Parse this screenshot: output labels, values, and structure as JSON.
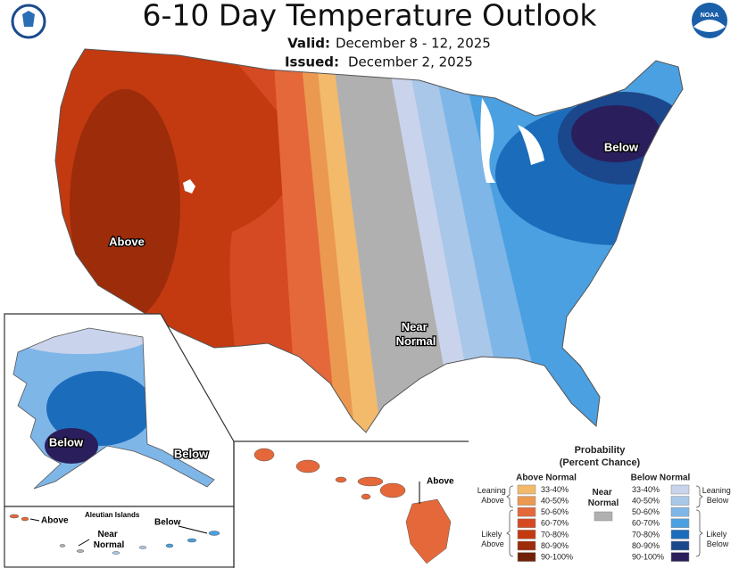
{
  "header": {
    "title": "6-10 Day Temperature Outlook",
    "valid_label": "Valid:",
    "valid_dates": "December 8 - 12, 2025",
    "issued_label": "Issued:",
    "issued_date": "December 2, 2025",
    "noaa_logo_text": "NOAA"
  },
  "map_labels": {
    "conus_above": "Above",
    "conus_near": [
      "Near",
      "Normal"
    ],
    "conus_below": "Below",
    "alaska_below": "Below",
    "panhandle_below": "Below",
    "hawaii_above": "Above",
    "aleutian_title": "Aleutian Islands",
    "aleutian_above": "Above",
    "aleutian_below": "Below",
    "aleutian_near": [
      "Near",
      "Normal"
    ]
  },
  "legend": {
    "title": "Probability",
    "subtitle": "(Percent Chance)",
    "above_header": "Above Normal",
    "below_header": "Below Normal",
    "near_header": [
      "Near",
      "Normal"
    ],
    "near_color": "#b0b0b0",
    "leaning_above": [
      "Leaning",
      "Above"
    ],
    "likely_above": [
      "Likely",
      "Above"
    ],
    "leaning_below": [
      "Leaning",
      "Below"
    ],
    "likely_below": [
      "Likely",
      "Below"
    ],
    "above": [
      {
        "label": "33-40%",
        "color": "#f3ba6c"
      },
      {
        "label": "40-50%",
        "color": "#eb9950"
      },
      {
        "label": "50-60%",
        "color": "#e5683a"
      },
      {
        "label": "60-70%",
        "color": "#d54a22"
      },
      {
        "label": "70-80%",
        "color": "#c33a10"
      },
      {
        "label": "80-90%",
        "color": "#9c2c0a"
      },
      {
        "label": "90-100%",
        "color": "#6f2006"
      }
    ],
    "below": [
      {
        "label": "33-40%",
        "color": "#c9d4ec"
      },
      {
        "label": "40-50%",
        "color": "#a9c7e8"
      },
      {
        "label": "50-60%",
        "color": "#7fb6e8"
      },
      {
        "label": "60-70%",
        "color": "#4aa0e0"
      },
      {
        "label": "70-80%",
        "color": "#1c6cbc"
      },
      {
        "label": "80-90%",
        "color": "#1b478c"
      },
      {
        "label": "90-100%",
        "color": "#2b1e5c"
      }
    ]
  }
}
